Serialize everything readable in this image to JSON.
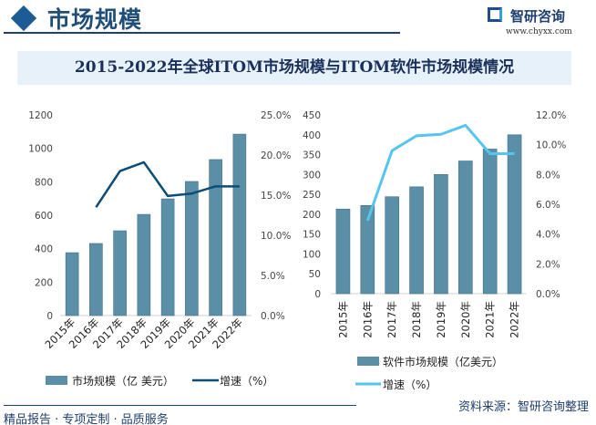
{
  "header": {
    "title": "市场规模",
    "brand": "智研咨询",
    "url": "www.chyxx.com"
  },
  "title": "2015-2022年全球ITOM市场规模与ITOM软件市场规模情况",
  "footer": {
    "tagline": "精品报告 · 专项定制 · 品质服务",
    "source": "资料来源：智研咨询整理",
    "watermark": "智研咨询"
  },
  "colors": {
    "bar": "#5b8fa8",
    "line_left": "#0d4d75",
    "line_right": "#55c5f0",
    "title_bg": "#e6f1fa"
  },
  "chart_data": [
    {
      "type": "bar+line",
      "categories": [
        "2015年",
        "2016年",
        "2017年",
        "2018年",
        "2019年",
        "2020年",
        "2021年",
        "2022年"
      ],
      "series": [
        {
          "name": "市场规模（亿 美元）",
          "type": "bar",
          "axis": "left",
          "values": [
            376,
            431,
            507,
            605,
            698,
            802,
            933,
            1085
          ]
        },
        {
          "name": "增速（%）",
          "type": "line",
          "axis": "right",
          "values": [
            null,
            13.5,
            18.0,
            19.1,
            14.9,
            15.2,
            16.1,
            16.1
          ]
        }
      ],
      "y_left": {
        "range": [
          0,
          1200
        ],
        "ticks": [
          "0",
          "200",
          "400",
          "600",
          "800",
          "1000",
          "1200"
        ]
      },
      "y_right": {
        "range": [
          0,
          25
        ],
        "ticks": [
          "0.0%",
          "5.0%",
          "10.0%",
          "15.0%",
          "20.0%",
          "25.0%"
        ]
      },
      "grid": false,
      "legend": "bottom"
    },
    {
      "type": "bar+line",
      "categories": [
        "2015年",
        "2016年",
        "2017年",
        "2018年",
        "2019年",
        "2020年",
        "2021年",
        "2022年"
      ],
      "series": [
        {
          "name": "软件市场规模（亿美元）",
          "type": "bar",
          "axis": "left",
          "values": [
            213,
            222,
            244,
            269,
            300,
            334,
            364,
            400
          ]
        },
        {
          "name": "增速（%）",
          "type": "line",
          "axis": "right",
          "values": [
            null,
            4.9,
            9.6,
            10.6,
            10.7,
            11.3,
            9.4,
            9.4
          ]
        }
      ],
      "y_left": {
        "range": [
          0,
          450
        ],
        "ticks": [
          "0",
          "50",
          "100",
          "150",
          "200",
          "250",
          "300",
          "350",
          "400",
          "450"
        ]
      },
      "y_right": {
        "range": [
          0,
          12
        ],
        "ticks": [
          "0.0%",
          "2.0%",
          "4.0%",
          "6.0%",
          "8.0%",
          "10.0%",
          "12.0%"
        ]
      },
      "grid": false,
      "legend": "bottom"
    }
  ]
}
